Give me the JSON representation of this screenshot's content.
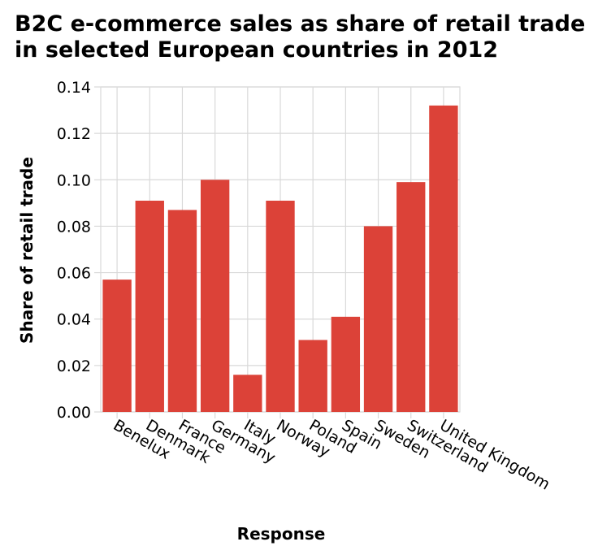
{
  "chart_data": {
    "type": "bar",
    "title": "B2C e-commerce sales as share of retail trade in selected European countries in 2012",
    "xlabel": "Response",
    "ylabel": "Share of retail trade",
    "categories": [
      "Benelux",
      "Denmark",
      "France",
      "Germany",
      "Italy",
      "Norway",
      "Poland",
      "Spain",
      "Sweden",
      "Switzerland",
      "United Kingdom"
    ],
    "values": [
      0.057,
      0.091,
      0.087,
      0.1,
      0.016,
      0.091,
      0.031,
      0.041,
      0.08,
      0.099,
      0.132
    ],
    "ylim": [
      0,
      0.14
    ],
    "yticks": [
      "0.00",
      "0.02",
      "0.04",
      "0.06",
      "0.08",
      "0.10",
      "0.12",
      "0.14"
    ],
    "grid": true,
    "legend": "none",
    "bar_color": "#dc4238",
    "grid_color": "#d9d9d9"
  }
}
